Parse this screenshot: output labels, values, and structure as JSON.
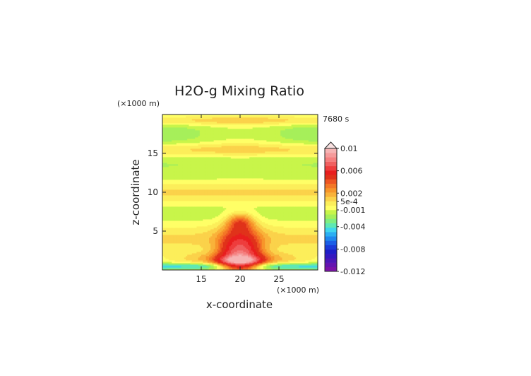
{
  "chart_data": {
    "type": "heatmap",
    "title": "H2O-g Mixing Ratio",
    "time_label": "7680 s",
    "xlabel": "x-coordinate",
    "ylabel": "z-coordinate",
    "x_unit": "(×1000 m)",
    "z_unit": "(×1000 m)",
    "xlim": [
      10,
      30
    ],
    "zlim": [
      0,
      20
    ],
    "x_ticks": [
      15,
      20,
      25
    ],
    "z_ticks": [
      5,
      10,
      15
    ],
    "colorbar": {
      "range": [
        -0.012,
        0.01
      ],
      "tick_values": [
        0.01,
        0.006,
        0.002,
        0.0005,
        -0.001,
        -0.004,
        -0.008,
        -0.012
      ],
      "tick_labels": [
        "0.01",
        "0.006",
        "0.002",
        "5e-4",
        "-0.001",
        "-0.004",
        "-0.008",
        "-0.012"
      ],
      "levels": [
        {
          "value": 0.01,
          "color": "#f6b4b4"
        },
        {
          "value": 0.009,
          "color": "#f59a9a"
        },
        {
          "value": 0.008,
          "color": "#f57f7f"
        },
        {
          "value": 0.007,
          "color": "#f06060"
        },
        {
          "value": 0.006,
          "color": "#ee3d3d"
        },
        {
          "value": 0.005,
          "color": "#e81e1e"
        },
        {
          "value": 0.004,
          "color": "#e0321a"
        },
        {
          "value": 0.003,
          "color": "#ee5522"
        },
        {
          "value": 0.0025,
          "color": "#f37726"
        },
        {
          "value": 0.002,
          "color": "#f7952a"
        },
        {
          "value": 0.0015,
          "color": "#f9b23a"
        },
        {
          "value": 0.001,
          "color": "#fbd24a"
        },
        {
          "value": 0.0005,
          "color": "#fcee5a"
        },
        {
          "value": 0.0,
          "color": "#ffff66"
        },
        {
          "value": -0.0005,
          "color": "#c8f54a"
        },
        {
          "value": -0.001,
          "color": "#a6ef5a"
        },
        {
          "value": -0.0015,
          "color": "#80ee80"
        },
        {
          "value": -0.002,
          "color": "#5ee8b4"
        },
        {
          "value": -0.003,
          "color": "#3fd6ee"
        },
        {
          "value": -0.004,
          "color": "#2aaef2"
        },
        {
          "value": -0.005,
          "color": "#1e86ee"
        },
        {
          "value": -0.006,
          "color": "#1a5ee6"
        },
        {
          "value": -0.007,
          "color": "#1a3ad8"
        },
        {
          "value": -0.008,
          "color": "#1e1ec8"
        },
        {
          "value": -0.009,
          "color": "#3418c0"
        },
        {
          "value": -0.01,
          "color": "#4c16b8"
        },
        {
          "value": -0.011,
          "color": "#6414b0"
        },
        {
          "value": -0.012,
          "color": "#7b12a8"
        }
      ]
    },
    "palette": {
      "background_green": "#a6ef5a",
      "yellow": "#ffff66",
      "blue_band": "#3fd6ee"
    }
  }
}
